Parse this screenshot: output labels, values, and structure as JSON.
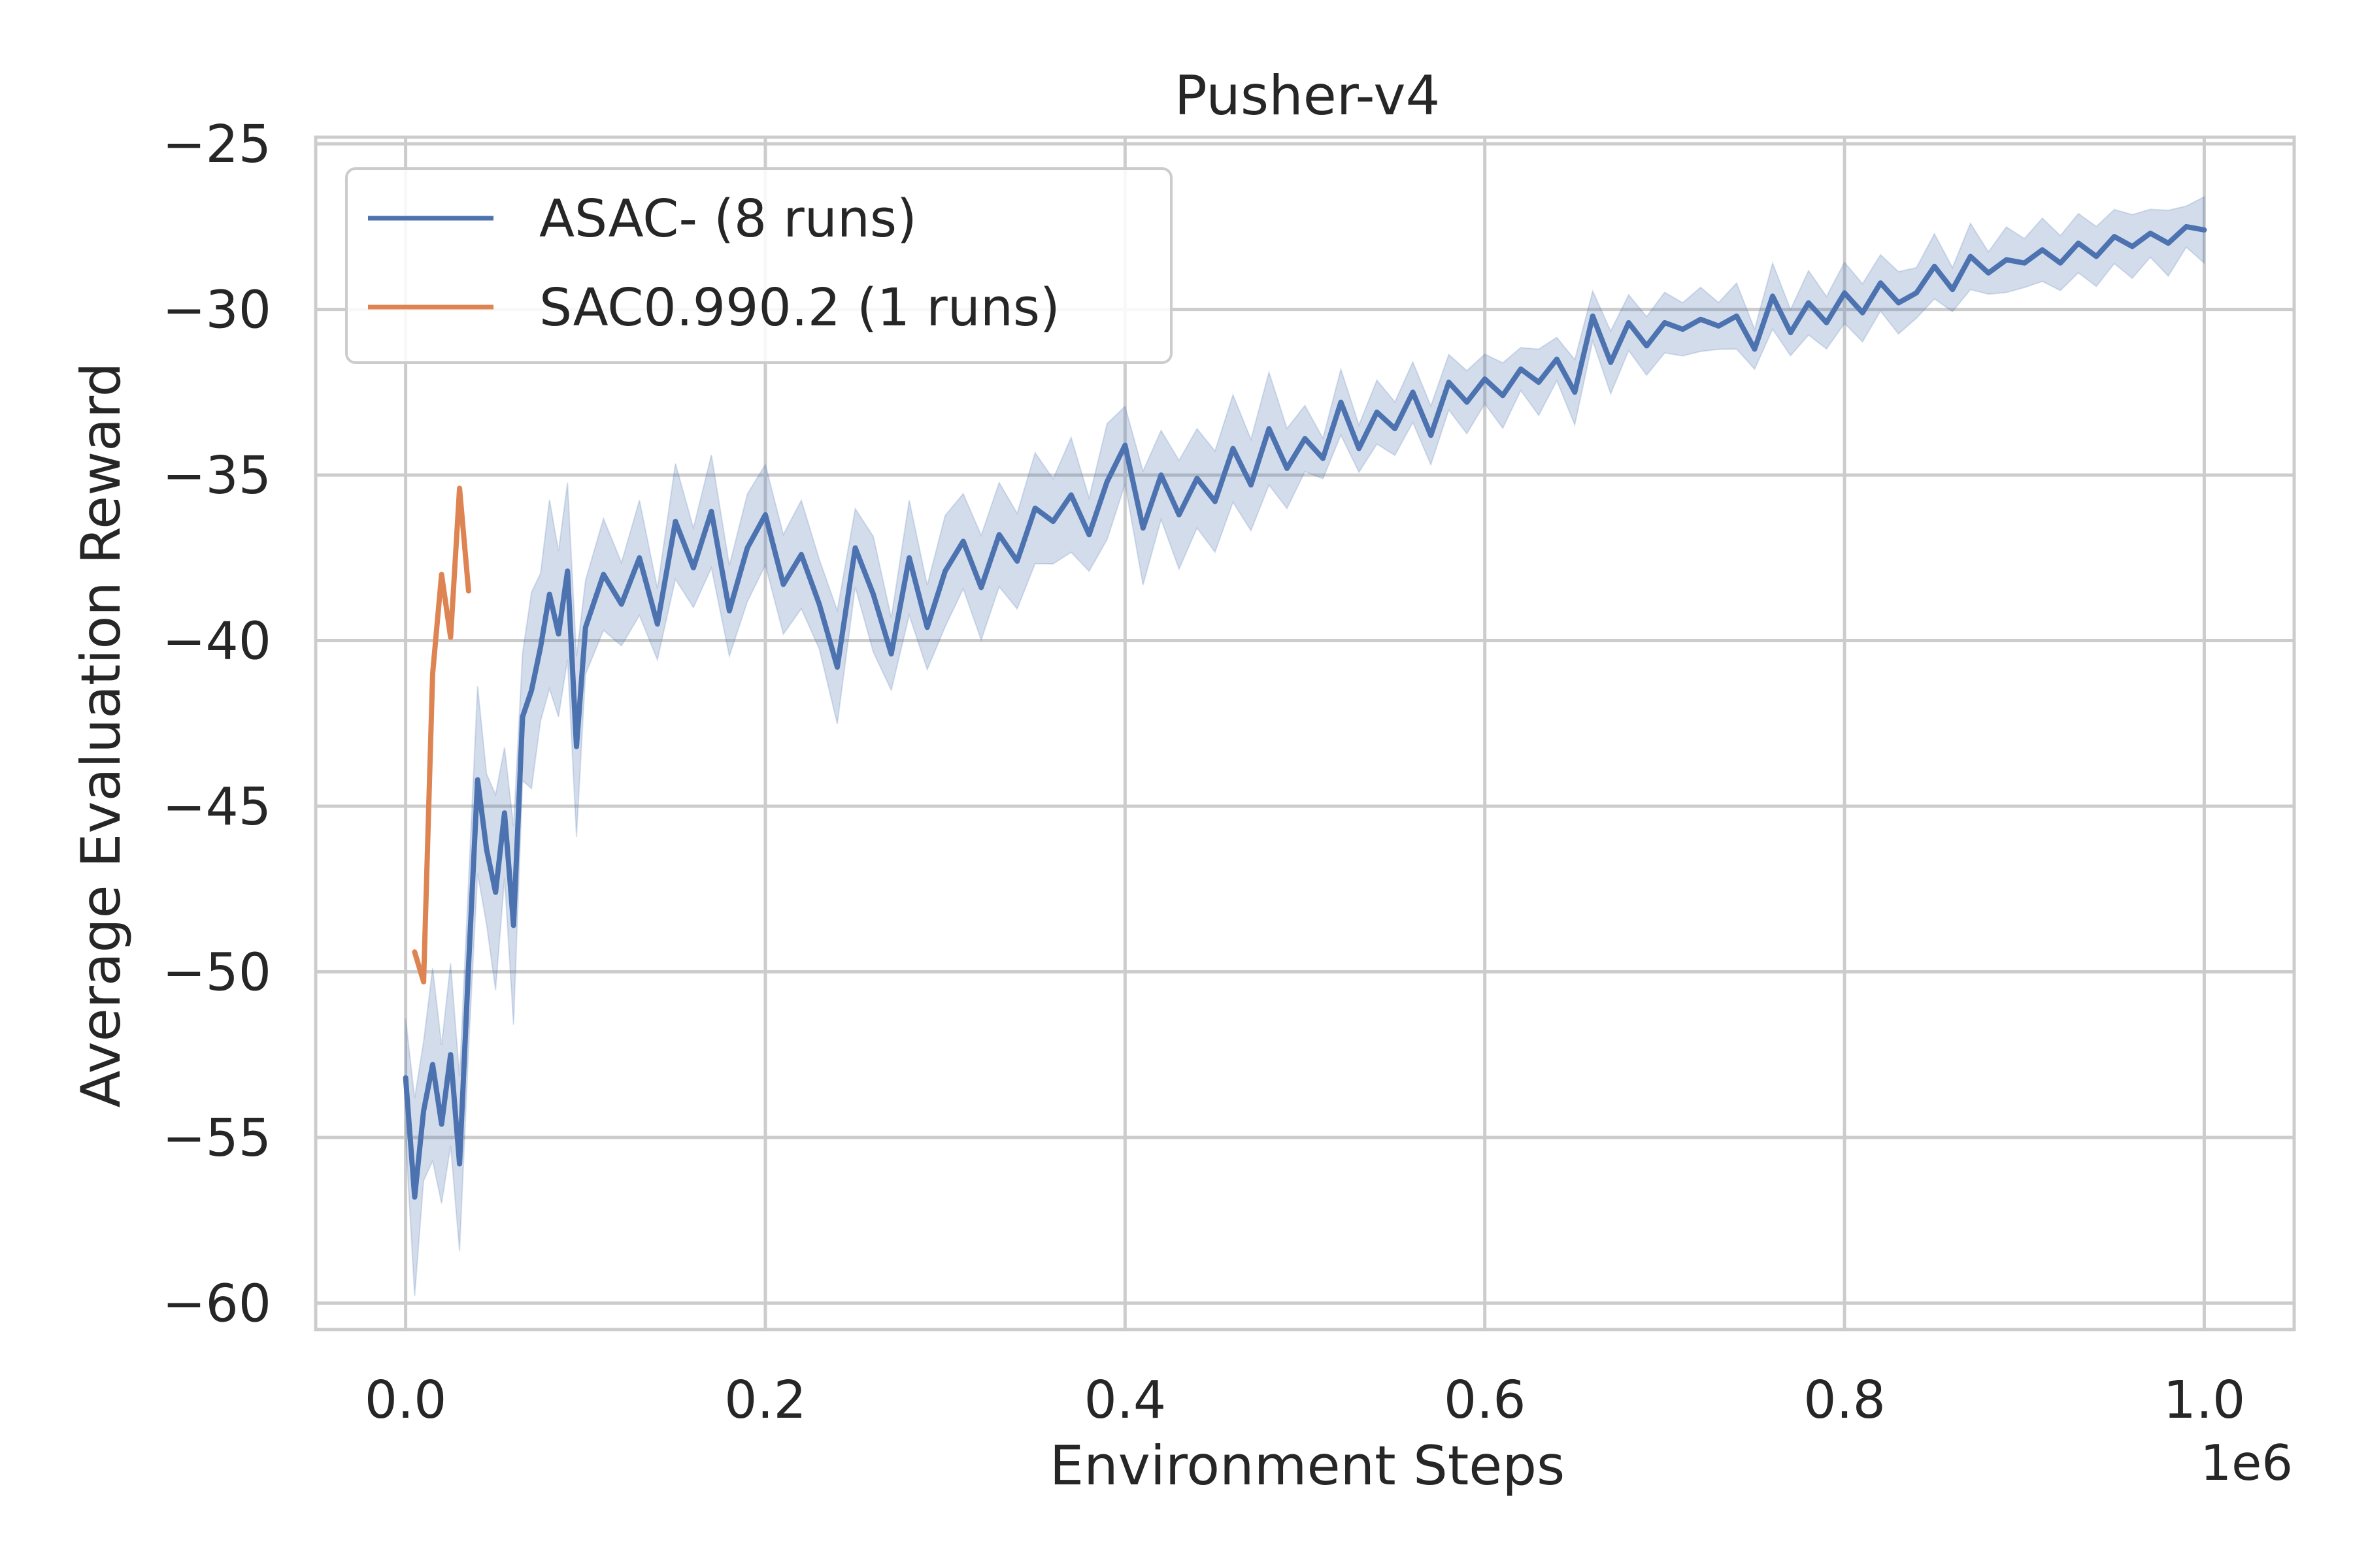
{
  "chart_data": {
    "type": "line",
    "title": "Pusher-v4",
    "xlabel": "Environment Steps",
    "ylabel": "Average Evaluation Reward",
    "x_offset_label": "1e6",
    "xlim": [
      -50000,
      1050000
    ],
    "ylim": [
      -60.8,
      -24.8
    ],
    "xticks": [
      0,
      200000,
      400000,
      600000,
      800000,
      1000000
    ],
    "xtick_labels": [
      "0.0",
      "0.2",
      "0.4",
      "0.6",
      "0.8",
      "1.0"
    ],
    "yticks": [
      -60,
      -55,
      -50,
      -45,
      -40,
      -35,
      -30,
      -25
    ],
    "ytick_labels": [
      "−60",
      "−55",
      "−50",
      "−45",
      "−40",
      "−35",
      "−30",
      "−25"
    ],
    "grid": true,
    "legend_position": "top-left",
    "series": [
      {
        "name": "ASAC- (8 runs)",
        "color": "#4c72b0",
        "band_color": "#4c72b0",
        "x": [
          0,
          5000,
          10000,
          15000,
          20000,
          25000,
          30000,
          35000,
          40000,
          45000,
          50000,
          55000,
          60000,
          65000,
          70000,
          75000,
          80000,
          85000,
          90000,
          95000,
          100000,
          110000,
          120000,
          130000,
          140000,
          150000,
          160000,
          170000,
          180000,
          190000,
          200000,
          210000,
          220000,
          230000,
          240000,
          250000,
          260000,
          270000,
          280000,
          290000,
          300000,
          310000,
          320000,
          330000,
          340000,
          350000,
          360000,
          370000,
          380000,
          390000,
          400000,
          410000,
          420000,
          430000,
          440000,
          450000,
          460000,
          470000,
          480000,
          490000,
          500000,
          510000,
          520000,
          530000,
          540000,
          550000,
          560000,
          570000,
          580000,
          590000,
          600000,
          610000,
          620000,
          630000,
          640000,
          650000,
          660000,
          670000,
          680000,
          690000,
          700000,
          710000,
          720000,
          730000,
          740000,
          750000,
          760000,
          770000,
          780000,
          790000,
          800000,
          810000,
          820000,
          830000,
          840000,
          850000,
          860000,
          870000,
          880000,
          890000,
          900000,
          910000,
          920000,
          930000,
          940000,
          950000,
          960000,
          970000,
          980000,
          990000,
          1000000
        ],
        "y": [
          -53.2,
          -56.8,
          -54.2,
          -52.8,
          -54.6,
          -52.5,
          -55.8,
          -49.8,
          -44.2,
          -46.3,
          -47.6,
          -45.2,
          -48.6,
          -42.3,
          -41.5,
          -40.2,
          -38.6,
          -39.8,
          -37.9,
          -43.2,
          -39.6,
          -38.0,
          -38.9,
          -37.5,
          -39.5,
          -36.4,
          -37.8,
          -36.1,
          -39.1,
          -37.2,
          -36.2,
          -38.3,
          -37.4,
          -38.9,
          -40.8,
          -37.2,
          -38.6,
          -40.4,
          -37.5,
          -39.6,
          -37.9,
          -37.0,
          -38.4,
          -36.8,
          -37.6,
          -36.0,
          -36.4,
          -35.6,
          -36.8,
          -35.2,
          -34.1,
          -36.6,
          -35.0,
          -36.2,
          -35.1,
          -35.8,
          -34.2,
          -35.3,
          -33.6,
          -34.8,
          -33.9,
          -34.5,
          -32.8,
          -34.2,
          -33.1,
          -33.6,
          -32.5,
          -33.8,
          -32.2,
          -32.8,
          -32.1,
          -32.6,
          -31.8,
          -32.2,
          -31.5,
          -32.5,
          -30.2,
          -31.6,
          -30.4,
          -31.1,
          -30.4,
          -30.6,
          -30.3,
          -30.5,
          -30.2,
          -31.2,
          -29.6,
          -30.7,
          -29.8,
          -30.4,
          -29.5,
          -30.1,
          -29.2,
          -29.8,
          -29.5,
          -28.7,
          -29.4,
          -28.4,
          -28.9,
          -28.5,
          -28.6,
          -28.2,
          -28.6,
          -28.0,
          -28.4,
          -27.8,
          -28.1,
          -27.7,
          -28.0,
          -27.5,
          -27.6
        ]
      },
      {
        "name": "SAC0.990.2 (1 runs)",
        "color": "#dd8452",
        "x": [
          5000,
          10000,
          15000,
          20000,
          25000,
          30000,
          35000
        ],
        "y": [
          -49.4,
          -50.3,
          -41.0,
          -38.0,
          -39.9,
          -35.4,
          -38.5
        ]
      }
    ]
  }
}
